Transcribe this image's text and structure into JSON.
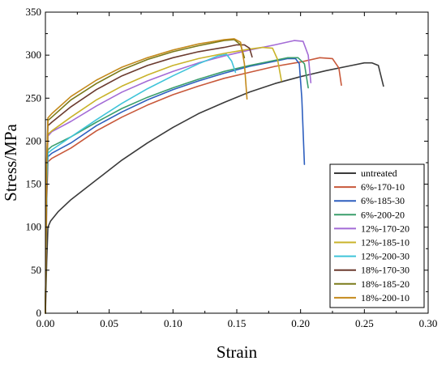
{
  "chart_data": {
    "type": "line",
    "xlabel": "Strain",
    "ylabel": "Stress/MPa",
    "xlim": [
      0.0,
      0.3
    ],
    "ylim": [
      0,
      350
    ],
    "x_ticks": [
      "0.00",
      "0.05",
      "0.10",
      "0.15",
      "0.20",
      "0.25",
      "0.30"
    ],
    "y_ticks": [
      "0",
      "50",
      "100",
      "150",
      "200",
      "250",
      "300",
      "350"
    ],
    "grid": false,
    "legend_position": "bottom-right",
    "series": [
      {
        "name": "untreated",
        "color": "#3a3a3a",
        "x": [
          0,
          0.001,
          0.002,
          0.004,
          0.01,
          0.02,
          0.04,
          0.06,
          0.08,
          0.1,
          0.12,
          0.14,
          0.16,
          0.18,
          0.2,
          0.22,
          0.24,
          0.25,
          0.256,
          0.261,
          0.265
        ],
        "y": [
          0,
          60,
          100,
          107,
          118,
          132,
          155,
          178,
          198,
          216,
          232,
          245,
          257,
          267,
          275,
          282,
          288,
          291,
          291,
          288,
          264
        ]
      },
      {
        "name": "6%-170-10",
        "color": "#c8583a",
        "x": [
          0,
          0.001,
          0.002,
          0.005,
          0.02,
          0.04,
          0.06,
          0.08,
          0.1,
          0.12,
          0.14,
          0.16,
          0.18,
          0.2,
          0.215,
          0.225,
          0.23,
          0.232
        ],
        "y": [
          0,
          130,
          176,
          180,
          192,
          212,
          228,
          242,
          254,
          264,
          273,
          280,
          287,
          292,
          297,
          296,
          285,
          265
        ]
      },
      {
        "name": "6%-185-30",
        "color": "#2e5fbf",
        "x": [
          0,
          0.001,
          0.002,
          0.005,
          0.02,
          0.04,
          0.06,
          0.08,
          0.1,
          0.12,
          0.14,
          0.16,
          0.18,
          0.19,
          0.196,
          0.199,
          0.201,
          0.203
        ],
        "y": [
          0,
          140,
          182,
          186,
          198,
          218,
          234,
          248,
          260,
          270,
          279,
          287,
          293,
          296,
          296,
          290,
          250,
          173
        ]
      },
      {
        "name": "6%-200-20",
        "color": "#3a9e6c",
        "x": [
          0,
          0.001,
          0.002,
          0.005,
          0.02,
          0.04,
          0.06,
          0.08,
          0.1,
          0.12,
          0.14,
          0.16,
          0.18,
          0.19,
          0.198,
          0.203,
          0.206
        ],
        "y": [
          0,
          150,
          190,
          194,
          205,
          222,
          238,
          251,
          262,
          272,
          281,
          288,
          294,
          297,
          297,
          290,
          262
        ]
      },
      {
        "name": "12%-170-20",
        "color": "#a36bd6",
        "x": [
          0,
          0.001,
          0.002,
          0.005,
          0.02,
          0.04,
          0.06,
          0.08,
          0.1,
          0.12,
          0.14,
          0.16,
          0.18,
          0.195,
          0.202,
          0.206,
          0.208
        ],
        "y": [
          0,
          160,
          206,
          211,
          223,
          241,
          257,
          270,
          281,
          291,
          299,
          306,
          312,
          317,
          316,
          300,
          268
        ]
      },
      {
        "name": "12%-185-10",
        "color": "#c9b32a",
        "x": [
          0,
          0.001,
          0.002,
          0.005,
          0.02,
          0.04,
          0.06,
          0.08,
          0.1,
          0.12,
          0.14,
          0.16,
          0.17,
          0.178,
          0.182,
          0.185
        ],
        "y": [
          0,
          165,
          208,
          212,
          228,
          248,
          264,
          277,
          288,
          296,
          302,
          307,
          309,
          308,
          295,
          270
        ]
      },
      {
        "name": "12%-200-30",
        "color": "#3fc4d9",
        "x": [
          0,
          0.001,
          0.002,
          0.005,
          0.02,
          0.04,
          0.06,
          0.08,
          0.1,
          0.12,
          0.135,
          0.142,
          0.146,
          0.149
        ],
        "y": [
          0,
          150,
          186,
          190,
          205,
          225,
          244,
          261,
          276,
          290,
          299,
          301,
          293,
          280
        ]
      },
      {
        "name": "18%-170-30",
        "color": "#6b3b2f",
        "x": [
          0,
          0.001,
          0.002,
          0.005,
          0.02,
          0.04,
          0.06,
          0.08,
          0.1,
          0.12,
          0.14,
          0.15,
          0.156,
          0.16,
          0.162
        ],
        "y": [
          0,
          170,
          218,
          222,
          240,
          260,
          276,
          288,
          297,
          304,
          309,
          312,
          312,
          308,
          298
        ]
      },
      {
        "name": "18%-185-20",
        "color": "#7a7a1a",
        "x": [
          0,
          0.001,
          0.002,
          0.005,
          0.02,
          0.04,
          0.06,
          0.08,
          0.1,
          0.12,
          0.14,
          0.148,
          0.153,
          0.156
        ],
        "y": [
          0,
          175,
          224,
          228,
          248,
          267,
          283,
          295,
          304,
          311,
          317,
          318,
          312,
          297
        ]
      },
      {
        "name": "18%-200-10",
        "color": "#c48a1c",
        "x": [
          0,
          0.001,
          0.002,
          0.005,
          0.02,
          0.04,
          0.06,
          0.08,
          0.1,
          0.12,
          0.14,
          0.148,
          0.153,
          0.156,
          0.158
        ],
        "y": [
          0,
          178,
          227,
          232,
          252,
          271,
          286,
          297,
          306,
          313,
          318,
          319,
          315,
          290,
          249
        ]
      }
    ]
  }
}
